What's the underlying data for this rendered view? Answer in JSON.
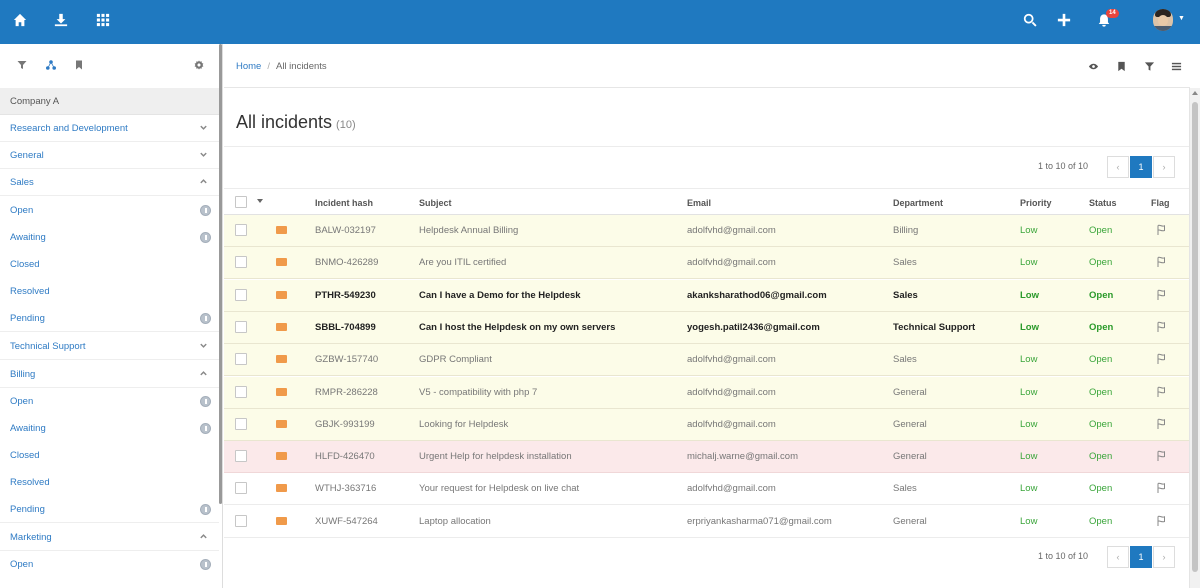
{
  "topbar": {
    "notification_count": "14",
    "icons": [
      "home-icon",
      "download-icon",
      "apps-grid-icon",
      "search-icon",
      "plus-icon",
      "bell-icon"
    ],
    "color": "#1f79c0"
  },
  "sidebar": {
    "company": "Company A",
    "groups": [
      {
        "label": "Research and Development",
        "expanded": false
      },
      {
        "label": "General",
        "expanded": false
      },
      {
        "label": "Sales",
        "expanded": true,
        "items": [
          "Open",
          "Awaiting",
          "Closed",
          "Resolved",
          "Pending"
        ]
      },
      {
        "label": "Technical Support",
        "expanded": false
      },
      {
        "label": "Billing",
        "expanded": true,
        "items": [
          "Open",
          "Awaiting",
          "Closed",
          "Resolved",
          "Pending"
        ]
      },
      {
        "label": "Marketing",
        "expanded": true,
        "items": [
          "Open"
        ]
      }
    ]
  },
  "breadcrumb": {
    "home": "Home",
    "current": "All incidents"
  },
  "page": {
    "title": "All incidents",
    "count": "(10)"
  },
  "pagination": {
    "range": "1 to 10 of 10",
    "prev": "‹",
    "page": "1",
    "next": "›"
  },
  "table": {
    "columns": [
      "Incident hash",
      "Subject",
      "Email",
      "Department",
      "Priority",
      "Status",
      "Flag"
    ],
    "rows": [
      {
        "hash": "BALW-032197",
        "subject": "Helpdesk Annual Billing",
        "email": "adolfvhd@gmail.com",
        "department": "Billing",
        "priority": "Low",
        "status": "Open",
        "style": "yellow",
        "bold": false
      },
      {
        "hash": "BNMO-426289",
        "subject": "Are you ITIL certified",
        "email": "adolfvhd@gmail.com",
        "department": "Sales",
        "priority": "Low",
        "status": "Open",
        "style": "yellow",
        "bold": false
      },
      {
        "hash": "PTHR-549230",
        "subject": "Can I have a Demo for the Helpdesk",
        "email": "akanksharathod06@gmail.com",
        "department": "Sales",
        "priority": "Low",
        "status": "Open",
        "style": "yellow",
        "bold": true
      },
      {
        "hash": "SBBL-704899",
        "subject": "Can I host the Helpdesk on my own servers",
        "email": "yogesh.patil2436@gmail.com",
        "department": "Technical Support",
        "priority": "Low",
        "status": "Open",
        "style": "yellow",
        "bold": true
      },
      {
        "hash": "GZBW-157740",
        "subject": "GDPR Compliant",
        "email": "adolfvhd@gmail.com",
        "department": "Sales",
        "priority": "Low",
        "status": "Open",
        "style": "yellow",
        "bold": false
      },
      {
        "hash": "RMPR-286228",
        "subject": "V5 - compatibility with php 7",
        "email": "adolfvhd@gmail.com",
        "department": "General",
        "priority": "Low",
        "status": "Open",
        "style": "yellow",
        "bold": false
      },
      {
        "hash": "GBJK-993199",
        "subject": "Looking for Helpdesk",
        "email": "adolfvhd@gmail.com",
        "department": "General",
        "priority": "Low",
        "status": "Open",
        "style": "yellow",
        "bold": false
      },
      {
        "hash": "HLFD-426470",
        "subject": "Urgent Help for helpdesk installation",
        "email": "michalj.warne@gmail.com",
        "department": "General",
        "priority": "Low",
        "status": "Open",
        "style": "pink",
        "bold": false
      },
      {
        "hash": "WTHJ-363716",
        "subject": "Your request for Helpdesk on live chat",
        "email": "adolfvhd@gmail.com",
        "department": "Sales",
        "priority": "Low",
        "status": "Open",
        "style": "white",
        "bold": false
      },
      {
        "hash": "XUWF-547264",
        "subject": "Laptop allocation",
        "email": "erpriyankasharma071@gmail.com",
        "department": "General",
        "priority": "Low",
        "status": "Open",
        "style": "white",
        "bold": false
      }
    ]
  }
}
